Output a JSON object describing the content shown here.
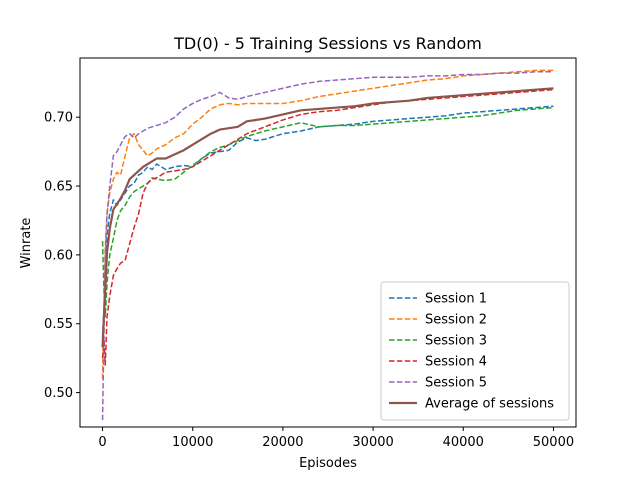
{
  "chart_data": {
    "type": "line",
    "title": "TD(0) - 5 Training Sessions vs Random",
    "xlabel": "Episodes",
    "ylabel": "Winrate",
    "xlim": [
      -2500,
      52500
    ],
    "ylim": [
      0.475,
      0.743
    ],
    "xticks": [
      0,
      10000,
      20000,
      30000,
      40000,
      50000
    ],
    "yticks": [
      0.5,
      0.55,
      0.6,
      0.65,
      0.7
    ],
    "xtick_labels": [
      "0",
      "10000",
      "20000",
      "30000",
      "40000",
      "50000"
    ],
    "ytick_labels": [
      "0.50",
      "0.55",
      "0.60",
      "0.65",
      "0.70"
    ],
    "grid": false,
    "legend_position": "lower-right",
    "series": [
      {
        "name": "Session 1",
        "color": "#1f77b4",
        "style": "dashed",
        "points": [
          [
            0,
            0.54
          ],
          [
            150,
            0.56
          ],
          [
            300,
            0.59
          ],
          [
            500,
            0.615
          ],
          [
            800,
            0.63
          ],
          [
            1200,
            0.64
          ],
          [
            1600,
            0.636
          ],
          [
            2000,
            0.64
          ],
          [
            2500,
            0.645
          ],
          [
            3000,
            0.65
          ],
          [
            3500,
            0.652
          ],
          [
            4000,
            0.658
          ],
          [
            4500,
            0.66
          ],
          [
            5000,
            0.664
          ],
          [
            5500,
            0.662
          ],
          [
            6000,
            0.666
          ],
          [
            7000,
            0.662
          ],
          [
            8000,
            0.664
          ],
          [
            9000,
            0.665
          ],
          [
            10000,
            0.664
          ],
          [
            11000,
            0.67
          ],
          [
            12000,
            0.674
          ],
          [
            13000,
            0.675
          ],
          [
            14000,
            0.676
          ],
          [
            15000,
            0.682
          ],
          [
            16000,
            0.685
          ],
          [
            17000,
            0.683
          ],
          [
            18000,
            0.684
          ],
          [
            20000,
            0.688
          ],
          [
            22000,
            0.69
          ],
          [
            24000,
            0.693
          ],
          [
            26000,
            0.694
          ],
          [
            28000,
            0.695
          ],
          [
            30000,
            0.697
          ],
          [
            32000,
            0.698
          ],
          [
            34000,
            0.699
          ],
          [
            36000,
            0.7
          ],
          [
            38000,
            0.701
          ],
          [
            40000,
            0.703
          ],
          [
            42000,
            0.704
          ],
          [
            44000,
            0.705
          ],
          [
            46000,
            0.706
          ],
          [
            48000,
            0.707
          ],
          [
            50000,
            0.708
          ]
        ]
      },
      {
        "name": "Session 2",
        "color": "#ff7f0e",
        "style": "dashed",
        "points": [
          [
            0,
            0.51
          ],
          [
            150,
            0.56
          ],
          [
            300,
            0.605
          ],
          [
            500,
            0.63
          ],
          [
            800,
            0.645
          ],
          [
            1200,
            0.655
          ],
          [
            1600,
            0.66
          ],
          [
            2000,
            0.658
          ],
          [
            2500,
            0.672
          ],
          [
            3000,
            0.685
          ],
          [
            3500,
            0.688
          ],
          [
            4000,
            0.68
          ],
          [
            4500,
            0.676
          ],
          [
            5000,
            0.672
          ],
          [
            5500,
            0.674
          ],
          [
            6000,
            0.677
          ],
          [
            7000,
            0.68
          ],
          [
            8000,
            0.685
          ],
          [
            9000,
            0.688
          ],
          [
            10000,
            0.695
          ],
          [
            11000,
            0.7
          ],
          [
            12000,
            0.706
          ],
          [
            13000,
            0.709
          ],
          [
            14000,
            0.71
          ],
          [
            15000,
            0.709
          ],
          [
            16000,
            0.71
          ],
          [
            18000,
            0.71
          ],
          [
            20000,
            0.71
          ],
          [
            22000,
            0.712
          ],
          [
            24000,
            0.715
          ],
          [
            26000,
            0.717
          ],
          [
            28000,
            0.719
          ],
          [
            30000,
            0.721
          ],
          [
            32000,
            0.723
          ],
          [
            34000,
            0.725
          ],
          [
            36000,
            0.727
          ],
          [
            38000,
            0.728
          ],
          [
            40000,
            0.73
          ],
          [
            42000,
            0.731
          ],
          [
            44000,
            0.732
          ],
          [
            46000,
            0.733
          ],
          [
            48000,
            0.734
          ],
          [
            50000,
            0.734
          ]
        ]
      },
      {
        "name": "Session 3",
        "color": "#2ca02c",
        "style": "dashed",
        "points": [
          [
            0,
            0.61
          ],
          [
            150,
            0.575
          ],
          [
            300,
            0.555
          ],
          [
            500,
            0.58
          ],
          [
            800,
            0.6
          ],
          [
            1200,
            0.612
          ],
          [
            1600,
            0.625
          ],
          [
            2000,
            0.632
          ],
          [
            2500,
            0.636
          ],
          [
            3000,
            0.642
          ],
          [
            3500,
            0.646
          ],
          [
            4000,
            0.648
          ],
          [
            4500,
            0.65
          ],
          [
            5000,
            0.652
          ],
          [
            5500,
            0.656
          ],
          [
            6000,
            0.655
          ],
          [
            7000,
            0.654
          ],
          [
            8000,
            0.655
          ],
          [
            9000,
            0.66
          ],
          [
            10000,
            0.665
          ],
          [
            11000,
            0.67
          ],
          [
            12000,
            0.675
          ],
          [
            13000,
            0.678
          ],
          [
            14000,
            0.68
          ],
          [
            15000,
            0.683
          ],
          [
            16000,
            0.686
          ],
          [
            18000,
            0.69
          ],
          [
            20000,
            0.693
          ],
          [
            22000,
            0.696
          ],
          [
            24000,
            0.693
          ],
          [
            26000,
            0.694
          ],
          [
            28000,
            0.694
          ],
          [
            30000,
            0.695
          ],
          [
            32000,
            0.696
          ],
          [
            34000,
            0.697
          ],
          [
            36000,
            0.698
          ],
          [
            38000,
            0.699
          ],
          [
            40000,
            0.7
          ],
          [
            42000,
            0.701
          ],
          [
            44000,
            0.703
          ],
          [
            46000,
            0.705
          ],
          [
            48000,
            0.706
          ],
          [
            50000,
            0.707
          ]
        ]
      },
      {
        "name": "Session 4",
        "color": "#d62728",
        "style": "dashed",
        "points": [
          [
            0,
            0.525
          ],
          [
            150,
            0.54
          ],
          [
            300,
            0.52
          ],
          [
            500,
            0.555
          ],
          [
            800,
            0.57
          ],
          [
            1200,
            0.585
          ],
          [
            1600,
            0.59
          ],
          [
            2000,
            0.594
          ],
          [
            2500,
            0.596
          ],
          [
            3000,
            0.608
          ],
          [
            3500,
            0.62
          ],
          [
            4000,
            0.63
          ],
          [
            4500,
            0.645
          ],
          [
            5000,
            0.652
          ],
          [
            5500,
            0.655
          ],
          [
            6000,
            0.656
          ],
          [
            7000,
            0.66
          ],
          [
            8000,
            0.661
          ],
          [
            9000,
            0.662
          ],
          [
            10000,
            0.664
          ],
          [
            11000,
            0.668
          ],
          [
            12000,
            0.672
          ],
          [
            13000,
            0.676
          ],
          [
            14000,
            0.68
          ],
          [
            15000,
            0.684
          ],
          [
            16000,
            0.688
          ],
          [
            18000,
            0.693
          ],
          [
            20000,
            0.698
          ],
          [
            22000,
            0.702
          ],
          [
            24000,
            0.704
          ],
          [
            26000,
            0.705
          ],
          [
            28000,
            0.707
          ],
          [
            30000,
            0.709
          ],
          [
            32000,
            0.711
          ],
          [
            34000,
            0.712
          ],
          [
            36000,
            0.713
          ],
          [
            38000,
            0.714
          ],
          [
            40000,
            0.715
          ],
          [
            42000,
            0.716
          ],
          [
            44000,
            0.717
          ],
          [
            46000,
            0.718
          ],
          [
            48000,
            0.719
          ],
          [
            50000,
            0.72
          ]
        ]
      },
      {
        "name": "Session 5",
        "color": "#9467bd",
        "style": "dashed",
        "points": [
          [
            0,
            0.48
          ],
          [
            150,
            0.54
          ],
          [
            300,
            0.6
          ],
          [
            500,
            0.63
          ],
          [
            800,
            0.65
          ],
          [
            1200,
            0.672
          ],
          [
            1600,
            0.675
          ],
          [
            2000,
            0.68
          ],
          [
            2500,
            0.686
          ],
          [
            3000,
            0.688
          ],
          [
            3500,
            0.685
          ],
          [
            4000,
            0.688
          ],
          [
            4500,
            0.69
          ],
          [
            5000,
            0.692
          ],
          [
            5500,
            0.693
          ],
          [
            6000,
            0.694
          ],
          [
            7000,
            0.696
          ],
          [
            8000,
            0.7
          ],
          [
            9000,
            0.706
          ],
          [
            10000,
            0.71
          ],
          [
            11000,
            0.713
          ],
          [
            12000,
            0.715
          ],
          [
            13000,
            0.718
          ],
          [
            14000,
            0.714
          ],
          [
            15000,
            0.713
          ],
          [
            16000,
            0.715
          ],
          [
            18000,
            0.718
          ],
          [
            20000,
            0.721
          ],
          [
            22000,
            0.724
          ],
          [
            24000,
            0.726
          ],
          [
            26000,
            0.727
          ],
          [
            28000,
            0.728
          ],
          [
            30000,
            0.729
          ],
          [
            32000,
            0.729
          ],
          [
            34000,
            0.729
          ],
          [
            36000,
            0.73
          ],
          [
            38000,
            0.73
          ],
          [
            40000,
            0.731
          ],
          [
            42000,
            0.731
          ],
          [
            44000,
            0.732
          ],
          [
            46000,
            0.732
          ],
          [
            48000,
            0.733
          ],
          [
            50000,
            0.733
          ]
        ]
      },
      {
        "name": "Average of sessions",
        "color": "#8c564b",
        "style": "solid",
        "points": [
          [
            0,
            0.533
          ],
          [
            150,
            0.555
          ],
          [
            300,
            0.574
          ],
          [
            500,
            0.602
          ],
          [
            800,
            0.619
          ],
          [
            1200,
            0.633
          ],
          [
            1600,
            0.637
          ],
          [
            2000,
            0.641
          ],
          [
            2500,
            0.647
          ],
          [
            3000,
            0.655
          ],
          [
            3500,
            0.658
          ],
          [
            4000,
            0.661
          ],
          [
            4500,
            0.664
          ],
          [
            5000,
            0.666
          ],
          [
            5500,
            0.668
          ],
          [
            6000,
            0.67
          ],
          [
            7000,
            0.67
          ],
          [
            8000,
            0.673
          ],
          [
            9000,
            0.676
          ],
          [
            10000,
            0.68
          ],
          [
            11000,
            0.684
          ],
          [
            12000,
            0.688
          ],
          [
            13000,
            0.691
          ],
          [
            14000,
            0.692
          ],
          [
            15000,
            0.693
          ],
          [
            16000,
            0.697
          ],
          [
            18000,
            0.699
          ],
          [
            20000,
            0.702
          ],
          [
            22000,
            0.705
          ],
          [
            24000,
            0.706
          ],
          [
            26000,
            0.707
          ],
          [
            28000,
            0.708
          ],
          [
            30000,
            0.71
          ],
          [
            32000,
            0.711
          ],
          [
            34000,
            0.712
          ],
          [
            36000,
            0.714
          ],
          [
            38000,
            0.715
          ],
          [
            40000,
            0.716
          ],
          [
            42000,
            0.717
          ],
          [
            44000,
            0.718
          ],
          [
            46000,
            0.719
          ],
          [
            48000,
            0.72
          ],
          [
            50000,
            0.721
          ]
        ]
      }
    ]
  }
}
